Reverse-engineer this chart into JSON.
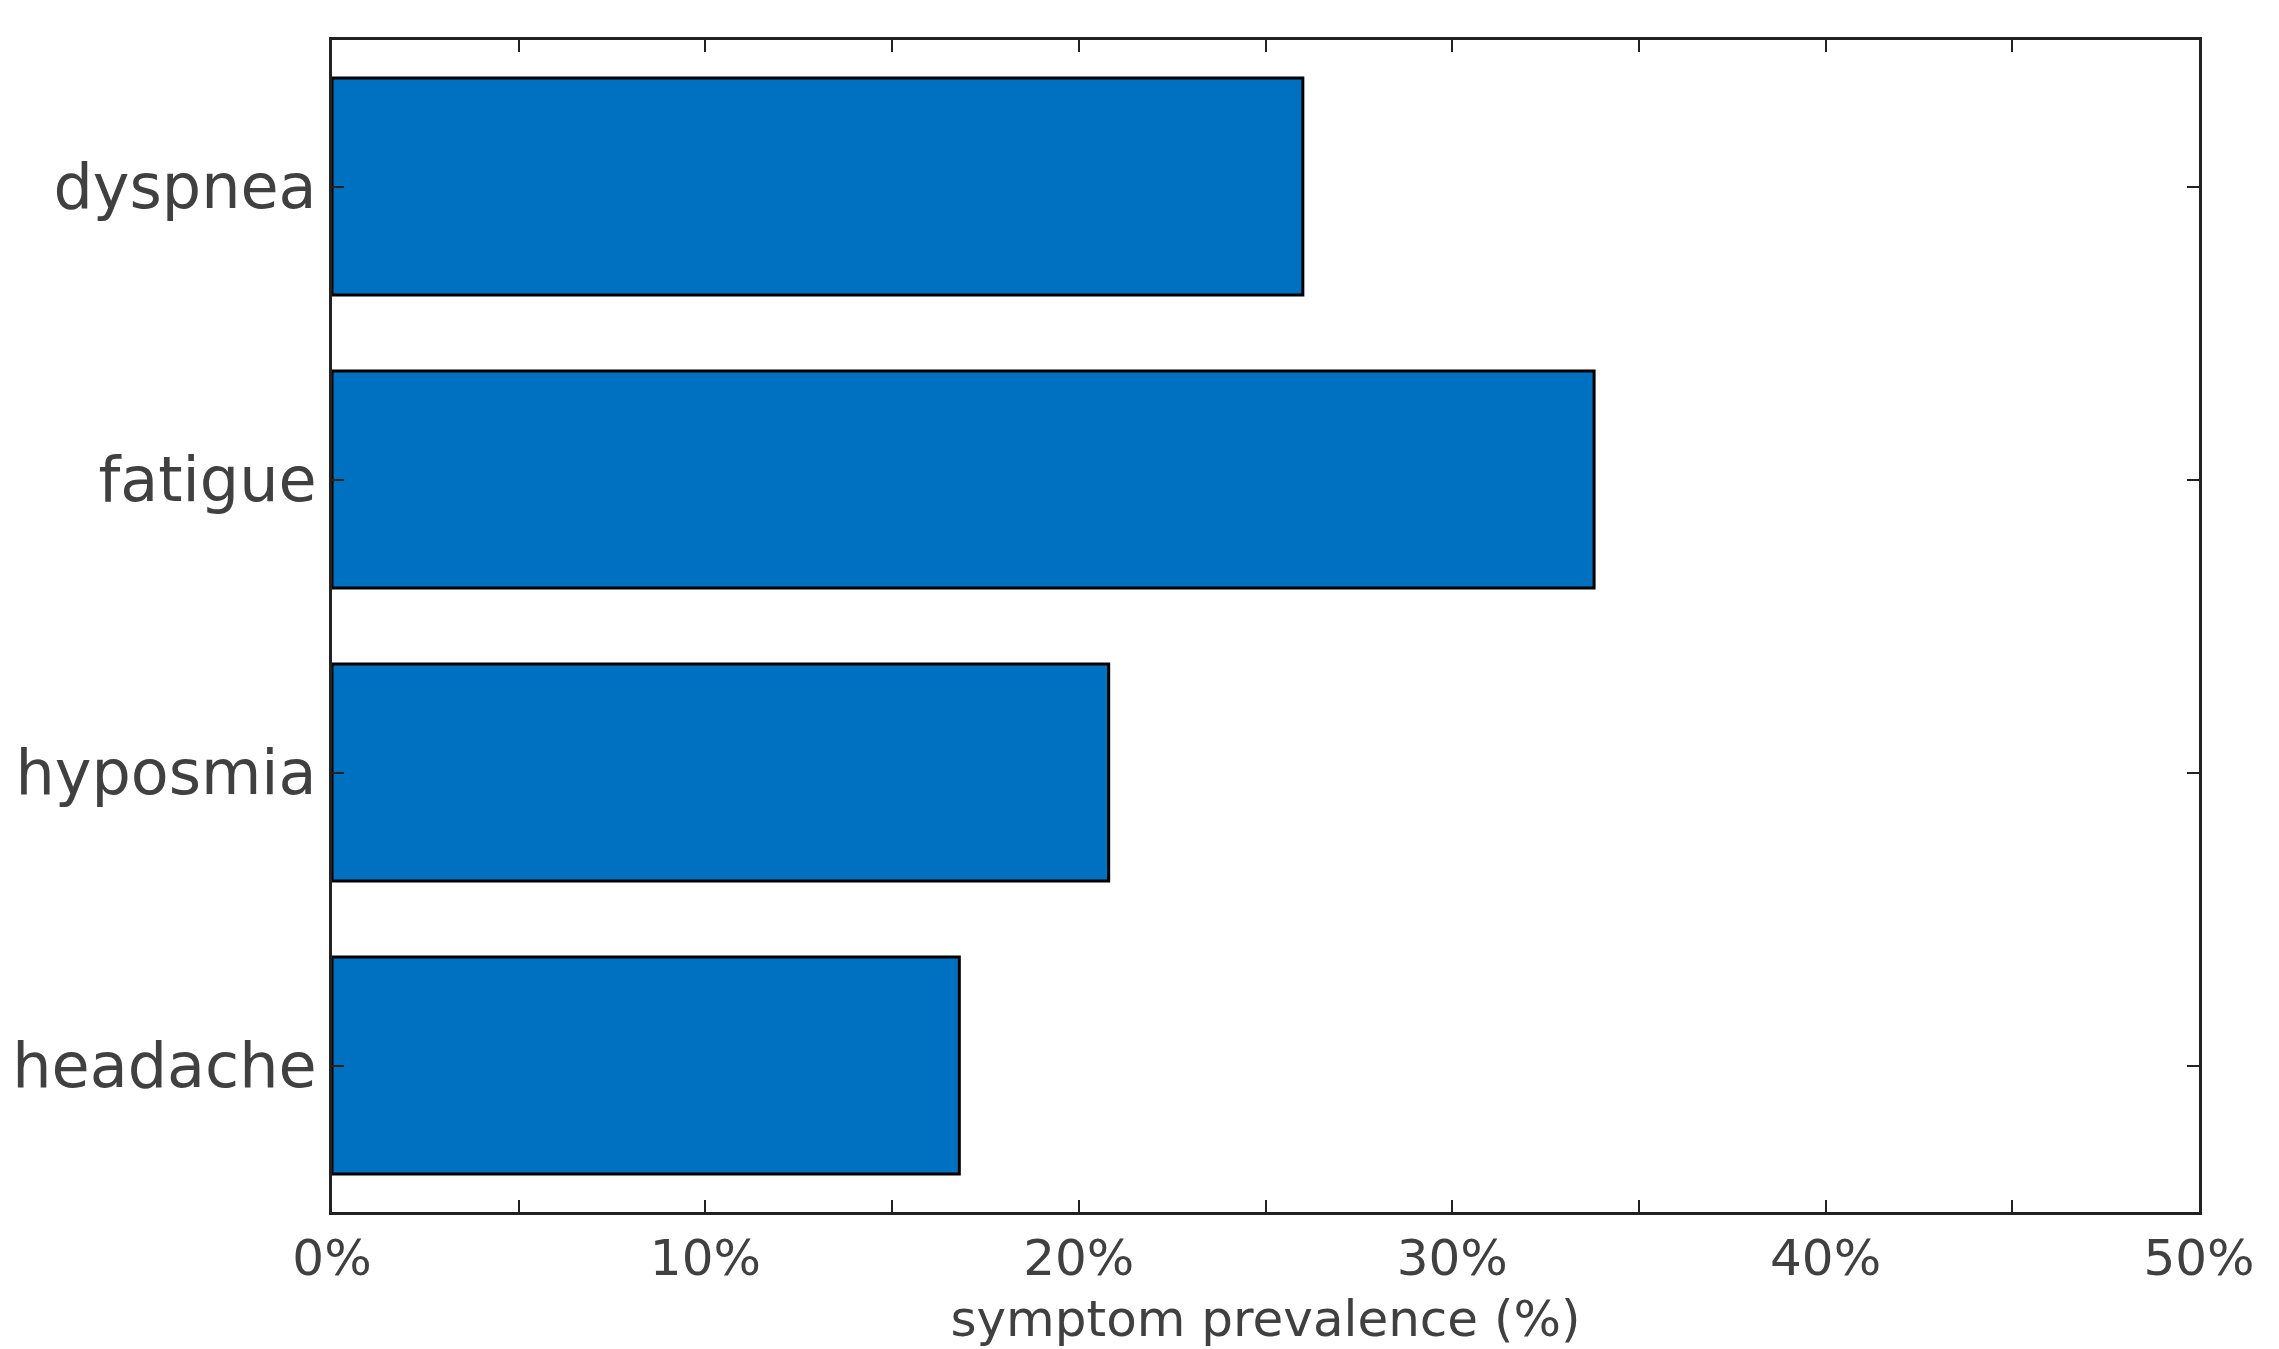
{
  "chart_data": {
    "type": "bar",
    "orientation": "horizontal",
    "xlabel": "symptom prevalence (%)",
    "categories": [
      "dyspnea",
      "fatigue",
      "hyposmia",
      "headache"
    ],
    "values": [
      26.0,
      33.8,
      20.8,
      16.8
    ],
    "color": "#0070c0",
    "xlim": [
      0,
      50
    ],
    "xticks": [
      {
        "value": 0,
        "label": "0%"
      },
      {
        "value": 5,
        "label": null
      },
      {
        "value": 10,
        "label": "10%"
      },
      {
        "value": 15,
        "label": null
      },
      {
        "value": 20,
        "label": "20%"
      },
      {
        "value": 25,
        "label": null
      },
      {
        "value": 30,
        "label": "30%"
      },
      {
        "value": 35,
        "label": null
      },
      {
        "value": 40,
        "label": "40%"
      },
      {
        "value": 45,
        "label": null
      },
      {
        "value": 50,
        "label": "50%"
      }
    ]
  }
}
